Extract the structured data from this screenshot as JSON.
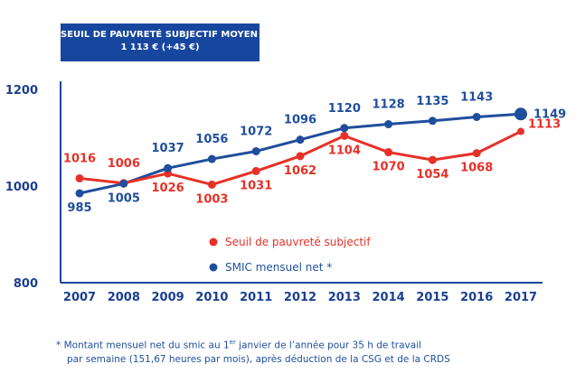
{
  "banner": {
    "line1": "SEUIL DE PAUVRETÉ SUBJECTIF MOYEN :",
    "line2": "1 113 € (+45 €)"
  },
  "footnote": {
    "line1_before": "* Montant mensuel net du smic au 1",
    "line1_sup": "er",
    "line1_after": " janvier de l’année pour 35 h de travail",
    "line2": "par semaine (151,67 heures par mois), après déduction de la CSG et de la CRDS"
  },
  "chart_data": {
    "type": "line",
    "x": [
      "2007",
      "2008",
      "2009",
      "2010",
      "2011",
      "2012",
      "2013",
      "2014",
      "2015",
      "2016",
      "2017"
    ],
    "ylim": [
      800,
      1200
    ],
    "yticks": [
      "800",
      "1000",
      "1200"
    ],
    "grid": false,
    "legend_position": "bottom-center",
    "series": [
      {
        "name": "Seuil de pauvreté subjectif",
        "color": "#e63127",
        "values": [
          1016,
          1006,
          1026,
          1003,
          1031,
          1062,
          1104,
          1070,
          1054,
          1068,
          1113
        ],
        "labels": [
          "1016",
          "1006",
          "1026",
          "1003",
          "1031",
          "1062",
          "1104",
          "1070",
          "1054",
          "1068",
          "1113"
        ]
      },
      {
        "name": "SMIC mensuel net *",
        "color": "#1f4e9c",
        "values": [
          985,
          1005,
          1037,
          1056,
          1072,
          1096,
          1120,
          1128,
          1135,
          1143,
          1149
        ],
        "labels": [
          "985",
          "1005",
          "1037",
          "1056",
          "1072",
          "1096",
          "1120",
          "1128",
          "1135",
          "1143",
          "1149"
        ]
      }
    ]
  }
}
